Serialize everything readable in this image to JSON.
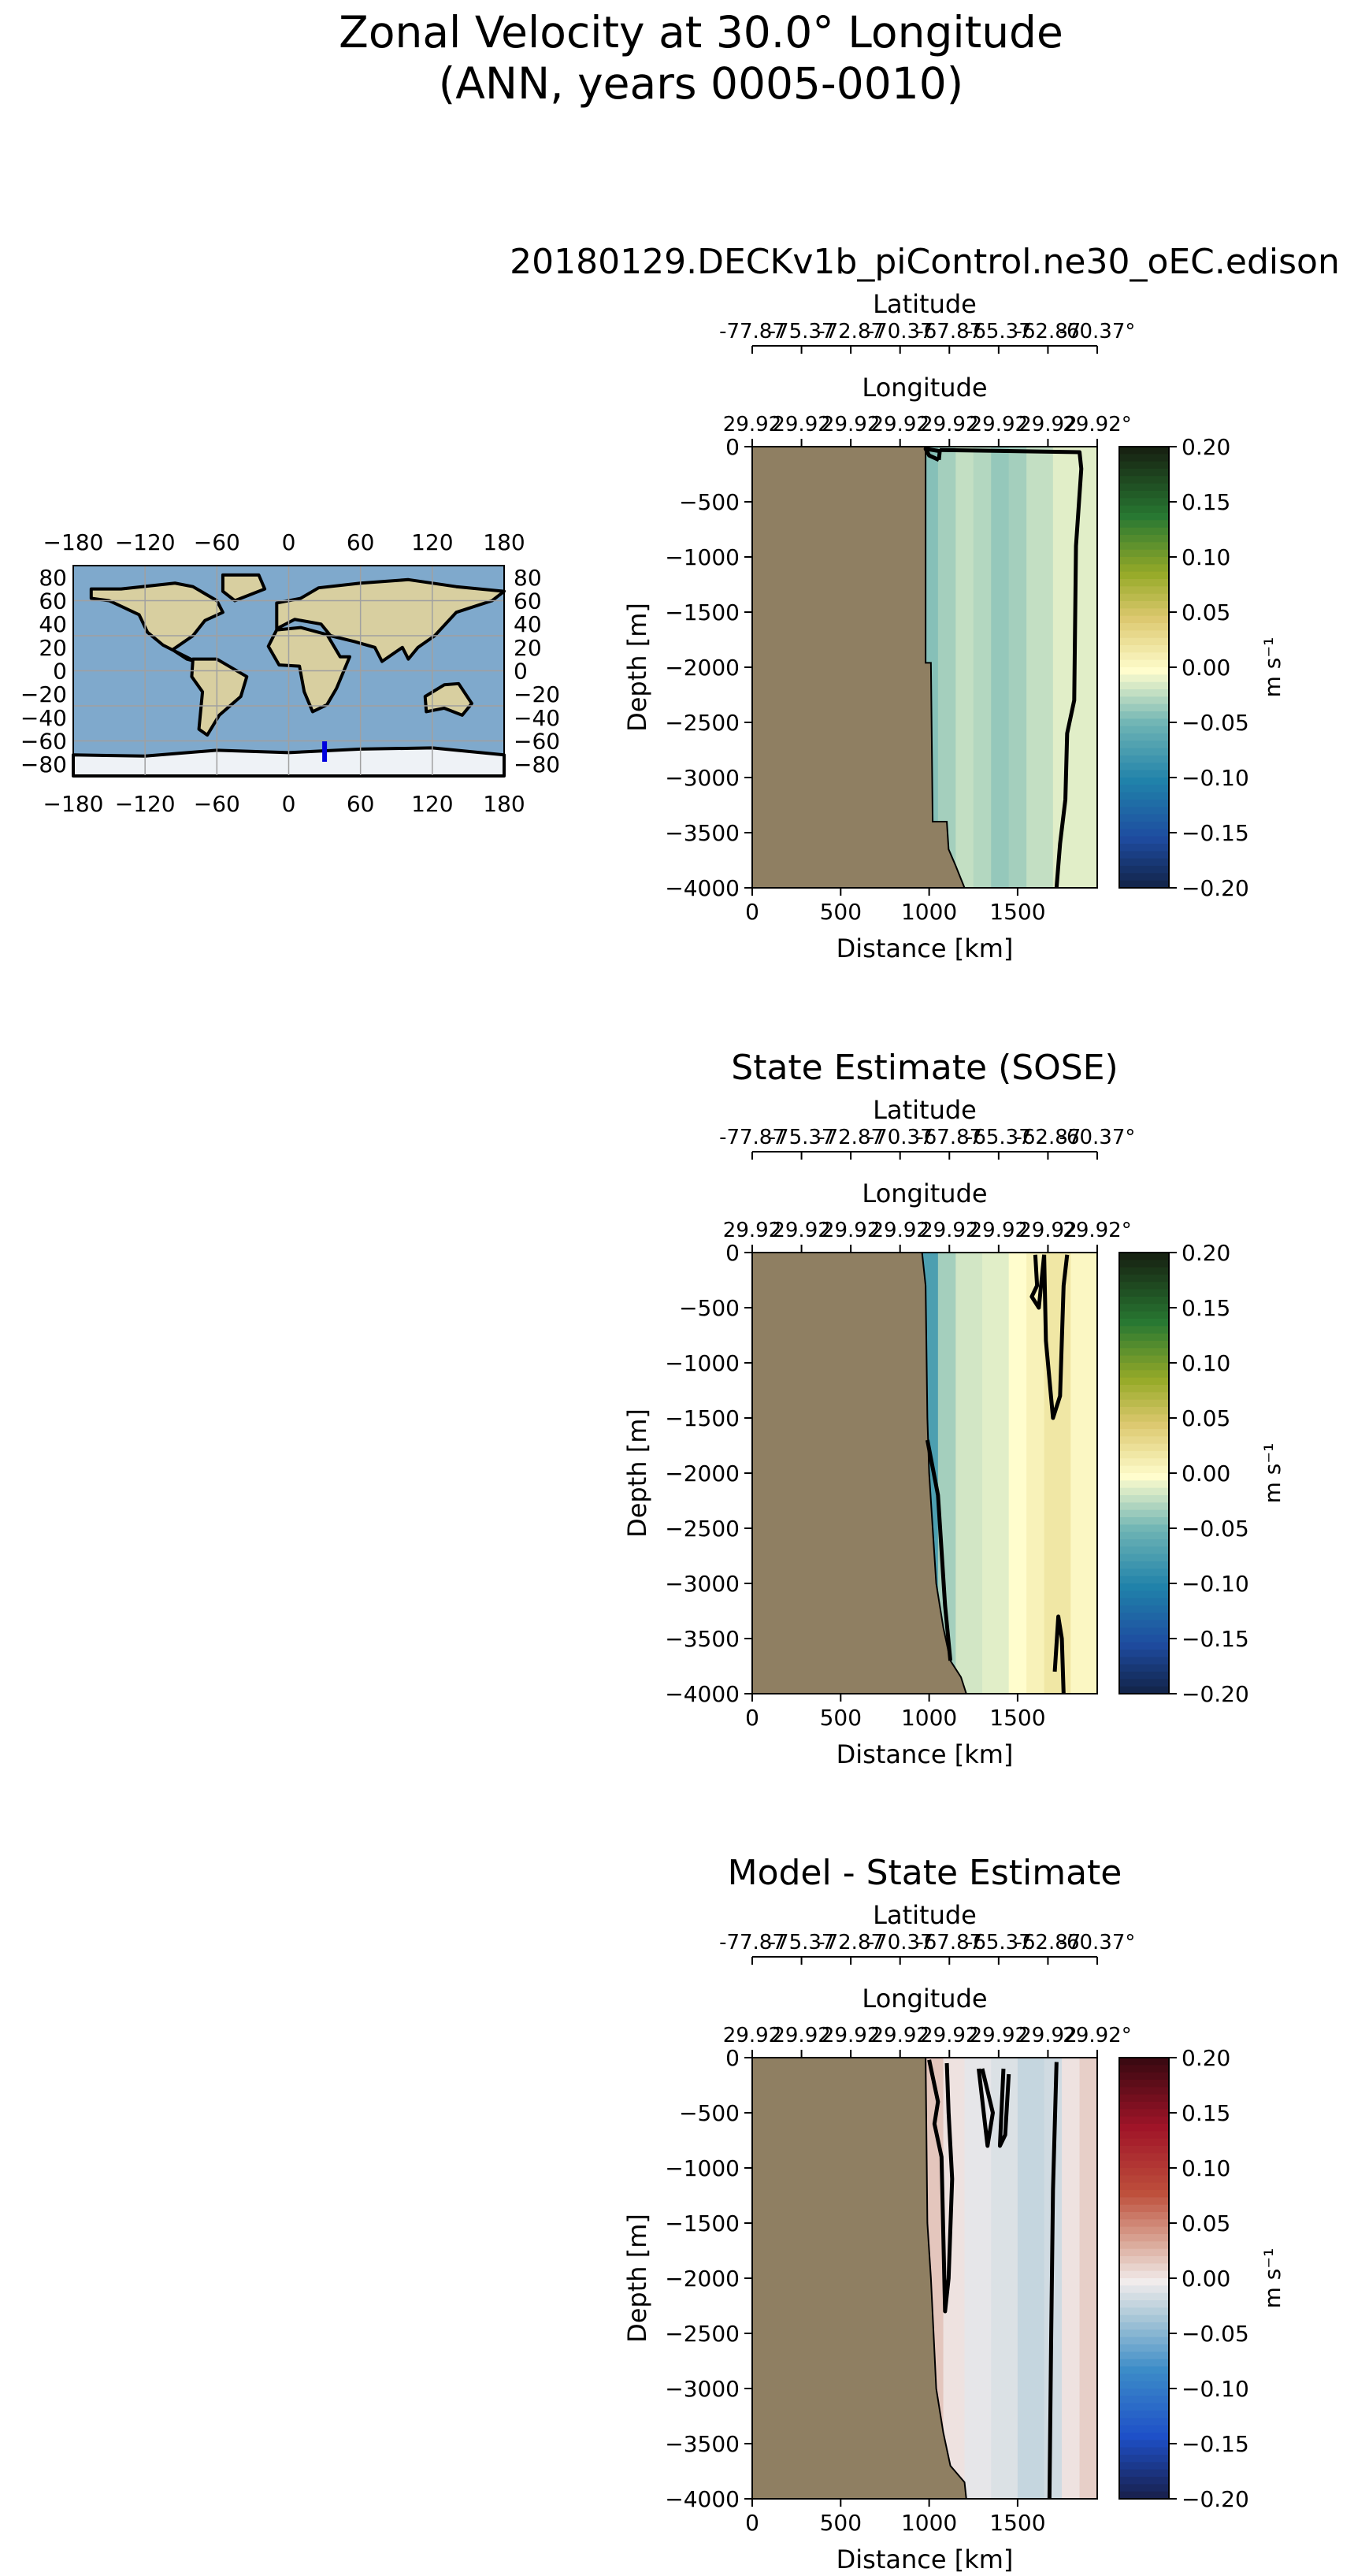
{
  "figure": {
    "title_line1": "Zonal Velocity at 30.0° Longitude",
    "title_line2": "(ANN, years 0005-0010)"
  },
  "map": {
    "lon_ticks": [
      "−180",
      "−120",
      "−60",
      "0",
      "60",
      "120",
      "180"
    ],
    "lat_ticks_left": [
      "80",
      "60",
      "40",
      "20",
      "0",
      "−20",
      "−40",
      "−60",
      "−80"
    ],
    "lat_ticks_right": [
      "80",
      "60",
      "40",
      "20",
      "0",
      "−20",
      "−40",
      "−60",
      "−80"
    ],
    "transect": {
      "lon": 30,
      "lat_start": -77.87,
      "lat_end": -60.37,
      "color": "#0000dd"
    },
    "colors": {
      "ocean": "#7fa9cc",
      "land": "#d8cfa0",
      "ice": "#eef2f6"
    }
  },
  "chart_data": [
    {
      "type": "heatmap",
      "title": "20180129.DECKv1b_piControl.ne30_oEC.edison",
      "top_axis1_label": "Latitude",
      "top_axis1_ticks": [
        "-77.87",
        "-75.37",
        "-72.87",
        "-70.37",
        "-67.87",
        "-65.37",
        "-62.87",
        "-60.37°"
      ],
      "top_axis2_label": "Longitude",
      "top_axis2_ticks": [
        "29.92",
        "29.92",
        "29.92",
        "29.92",
        "29.92",
        "29.92",
        "29.92",
        "29.92°"
      ],
      "xlabel": "Distance [km]",
      "ylabel": "Depth [m]",
      "xlim": [
        0,
        1950
      ],
      "ylim": [
        -4000,
        0
      ],
      "x_ticks": [
        "0",
        "500",
        "1000",
        "1500"
      ],
      "y_ticks": [
        "0",
        "−500",
        "−1000",
        "−1500",
        "−2000",
        "−2500",
        "−3000",
        "−3500",
        "−4000"
      ],
      "colorbar": {
        "label": "m s⁻¹",
        "cmap": "delta",
        "range": [
          -0.2,
          0.2
        ],
        "ticks": [
          "0.20",
          "0.15",
          "0.10",
          "0.05",
          "0.00",
          "−0.05",
          "−0.10",
          "−0.15",
          "−0.20"
        ]
      },
      "bathymetry": [
        [
          0,
          0
        ],
        [
          980,
          0
        ],
        [
          980,
          -1960
        ],
        [
          1010,
          -1960
        ],
        [
          1020,
          -3400
        ],
        [
          1100,
          -3400
        ],
        [
          1110,
          -3650
        ],
        [
          1150,
          -3800
        ],
        [
          1200,
          -4000
        ]
      ],
      "field_columns": [
        {
          "x": 980,
          "v": -0.04
        },
        {
          "x": 1050,
          "v": -0.03
        },
        {
          "x": 1150,
          "v": -0.02
        },
        {
          "x": 1250,
          "v": -0.025
        },
        {
          "x": 1350,
          "v": -0.035
        },
        {
          "x": 1450,
          "v": -0.03
        },
        {
          "x": 1550,
          "v": -0.02
        },
        {
          "x": 1700,
          "v": -0.01
        },
        {
          "x": 1950,
          "v": 0.02
        }
      ],
      "zero_contours": [
        [
          [
            1055,
            -120
          ],
          [
            1000,
            -80
          ],
          [
            980,
            -20
          ],
          [
            1060,
            -40
          ],
          [
            1055,
            -120
          ]
        ],
        [
          [
            1060,
            -30
          ],
          [
            1850,
            -50
          ],
          [
            1860,
            -200
          ],
          [
            1830,
            -900
          ],
          [
            1820,
            -2300
          ],
          [
            1780,
            -2600
          ],
          [
            1770,
            -3200
          ],
          [
            1740,
            -3600
          ],
          [
            1720,
            -4000
          ]
        ]
      ]
    },
    {
      "type": "heatmap",
      "title": "State Estimate (SOSE)",
      "top_axis1_label": "Latitude",
      "top_axis1_ticks": [
        "-77.87",
        "-75.37",
        "-72.87",
        "-70.37",
        "-67.87",
        "-65.37",
        "-62.87",
        "-60.37°"
      ],
      "top_axis2_label": "Longitude",
      "top_axis2_ticks": [
        "29.92",
        "29.92",
        "29.92",
        "29.92",
        "29.92",
        "29.92",
        "29.92",
        "29.92°"
      ],
      "xlabel": "Distance [km]",
      "ylabel": "Depth [m]",
      "xlim": [
        0,
        1950
      ],
      "ylim": [
        -4000,
        0
      ],
      "x_ticks": [
        "0",
        "500",
        "1000",
        "1500"
      ],
      "y_ticks": [
        "0",
        "−500",
        "−1000",
        "−1500",
        "−2000",
        "−2500",
        "−3000",
        "−3500",
        "−4000"
      ],
      "colorbar": {
        "label": "m s⁻¹",
        "cmap": "delta",
        "range": [
          -0.2,
          0.2
        ],
        "ticks": [
          "0.20",
          "0.15",
          "0.10",
          "0.05",
          "0.00",
          "−0.05",
          "−0.10",
          "−0.15",
          "−0.20"
        ]
      },
      "bathymetry": [
        [
          0,
          0
        ],
        [
          960,
          0
        ],
        [
          980,
          -300
        ],
        [
          990,
          -1500
        ],
        [
          1000,
          -2000
        ],
        [
          1040,
          -3000
        ],
        [
          1080,
          -3400
        ],
        [
          1120,
          -3700
        ],
        [
          1180,
          -3850
        ],
        [
          1210,
          -4000
        ]
      ],
      "field_columns": [
        {
          "x": 960,
          "v": -0.07
        },
        {
          "x": 1050,
          "v": -0.03
        },
        {
          "x": 1150,
          "v": -0.015
        },
        {
          "x": 1300,
          "v": -0.01
        },
        {
          "x": 1450,
          "v": 0.0
        },
        {
          "x": 1550,
          "v": 0.01
        },
        {
          "x": 1650,
          "v": 0.02
        },
        {
          "x": 1800,
          "v": 0.005
        },
        {
          "x": 1950,
          "v": 0.0
        }
      ],
      "zero_contours": [
        [
          [
            1600,
            -20
          ],
          [
            1610,
            -300
          ],
          [
            1580,
            -400
          ],
          [
            1620,
            -500
          ],
          [
            1650,
            -20
          ]
        ],
        [
          [
            1650,
            -20
          ],
          [
            1660,
            -800
          ],
          [
            1700,
            -1500
          ],
          [
            1740,
            -1300
          ],
          [
            1760,
            -300
          ],
          [
            1780,
            -20
          ]
        ],
        [
          [
            990,
            -1700
          ],
          [
            1050,
            -2200
          ],
          [
            1090,
            -3200
          ],
          [
            1120,
            -3700
          ]
        ],
        [
          [
            1710,
            -3800
          ],
          [
            1730,
            -3300
          ],
          [
            1750,
            -3500
          ],
          [
            1760,
            -4000
          ]
        ]
      ]
    },
    {
      "type": "heatmap",
      "title": "Model - State Estimate",
      "top_axis1_label": "Latitude",
      "top_axis1_ticks": [
        "-77.87",
        "-75.37",
        "-72.87",
        "-70.37",
        "-67.87",
        "-65.37",
        "-62.87",
        "-60.37°"
      ],
      "top_axis2_label": "Longitude",
      "top_axis2_ticks": [
        "29.92",
        "29.92",
        "29.92",
        "29.92",
        "29.92",
        "29.92",
        "29.92",
        "29.92°"
      ],
      "xlabel": "Distance [km]",
      "ylabel": "Depth [m]",
      "xlim": [
        0,
        1950
      ],
      "ylim": [
        -4000,
        0
      ],
      "x_ticks": [
        "0",
        "500",
        "1000",
        "1500"
      ],
      "y_ticks": [
        "0",
        "−500",
        "−1000",
        "−1500",
        "−2000",
        "−2500",
        "−3000",
        "−3500",
        "−4000"
      ],
      "colorbar": {
        "label": "m s⁻¹",
        "cmap": "balance",
        "range": [
          -0.2,
          0.2
        ],
        "ticks": [
          "0.20",
          "0.15",
          "0.10",
          "0.05",
          "0.00",
          "−0.05",
          "−0.10",
          "−0.15",
          "−0.20"
        ]
      },
      "bathymetry": [
        [
          0,
          0
        ],
        [
          980,
          0
        ],
        [
          990,
          -1500
        ],
        [
          1010,
          -2000
        ],
        [
          1040,
          -3000
        ],
        [
          1080,
          -3400
        ],
        [
          1120,
          -3700
        ],
        [
          1200,
          -3850
        ],
        [
          1210,
          -4000
        ]
      ],
      "field_columns": [
        {
          "x": 980,
          "v": 0.02
        },
        {
          "x": 1080,
          "v": 0.005
        },
        {
          "x": 1200,
          "v": -0.005
        },
        {
          "x": 1350,
          "v": -0.01
        },
        {
          "x": 1500,
          "v": -0.02
        },
        {
          "x": 1650,
          "v": -0.015
        },
        {
          "x": 1750,
          "v": 0.005
        },
        {
          "x": 1850,
          "v": 0.015
        },
        {
          "x": 1950,
          "v": 0.01
        }
      ],
      "zero_contours": [
        [
          [
            1000,
            -20
          ],
          [
            1050,
            -400
          ],
          [
            1030,
            -600
          ],
          [
            1070,
            -900
          ],
          [
            1080,
            -1600
          ],
          [
            1090,
            -2300
          ],
          [
            1110,
            -2000
          ],
          [
            1130,
            -1100
          ],
          [
            1110,
            -500
          ],
          [
            1100,
            -50
          ]
        ],
        [
          [
            1280,
            -100
          ],
          [
            1330,
            -800
          ],
          [
            1360,
            -500
          ],
          [
            1300,
            -100
          ]
        ],
        [
          [
            1420,
            -100
          ],
          [
            1400,
            -800
          ],
          [
            1430,
            -700
          ],
          [
            1450,
            -150
          ]
        ],
        [
          [
            1720,
            -40
          ],
          [
            1700,
            -1200
          ],
          [
            1690,
            -2500
          ],
          [
            1680,
            -4000
          ]
        ]
      ]
    }
  ]
}
